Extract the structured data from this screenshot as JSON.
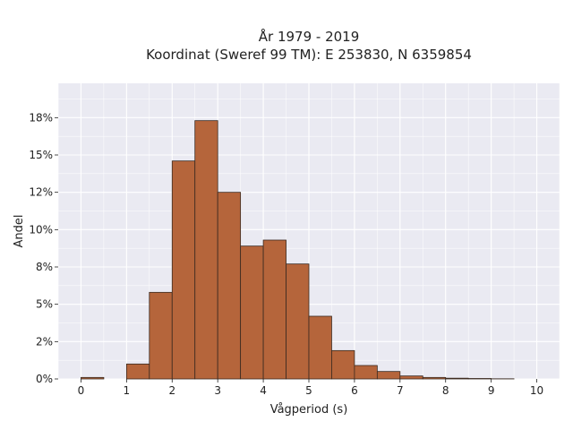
{
  "chart_data": {
    "type": "bar",
    "title": "År 1979 - 2019",
    "subtitle": "Koordinat (Sweref 99 TM): E 253830, N 6359854",
    "xlabel": "Vågperiod (s)",
    "ylabel": "Andel",
    "xlim": [
      -0.5,
      10.5
    ],
    "ylim": [
      0,
      0.198
    ],
    "bin_width": 0.5,
    "bins": [
      0.0,
      0.5,
      1.0,
      1.5,
      2.0,
      2.5,
      3.0,
      3.5,
      4.0,
      4.5,
      5.0,
      5.5,
      6.0,
      6.5,
      7.0,
      7.5,
      8.0,
      8.5,
      9.0
    ],
    "values": [
      0.001,
      0.0,
      0.01,
      0.058,
      0.146,
      0.173,
      0.125,
      0.089,
      0.093,
      0.077,
      0.042,
      0.019,
      0.009,
      0.005,
      0.002,
      0.001,
      0.0005,
      0.0003,
      0.0001
    ],
    "xticks": [
      0,
      1,
      2,
      3,
      4,
      5,
      6,
      7,
      8,
      9,
      10
    ],
    "xtick_labels": [
      "0",
      "1",
      "2",
      "3",
      "4",
      "5",
      "6",
      "7",
      "8",
      "9",
      "10"
    ],
    "yticks": [
      0,
      0.025,
      0.05,
      0.075,
      0.1,
      0.125,
      0.15,
      0.175
    ],
    "ytick_labels": [
      "0%",
      "2%",
      "5%",
      "8%",
      "10%",
      "12%",
      "15%",
      "18%"
    ],
    "grid": true,
    "colors": {
      "bar_fill": "#b5653b",
      "bar_stroke": "#3a2a20",
      "plot_background": "#eaeaf2",
      "grid": "#ffffff"
    }
  }
}
